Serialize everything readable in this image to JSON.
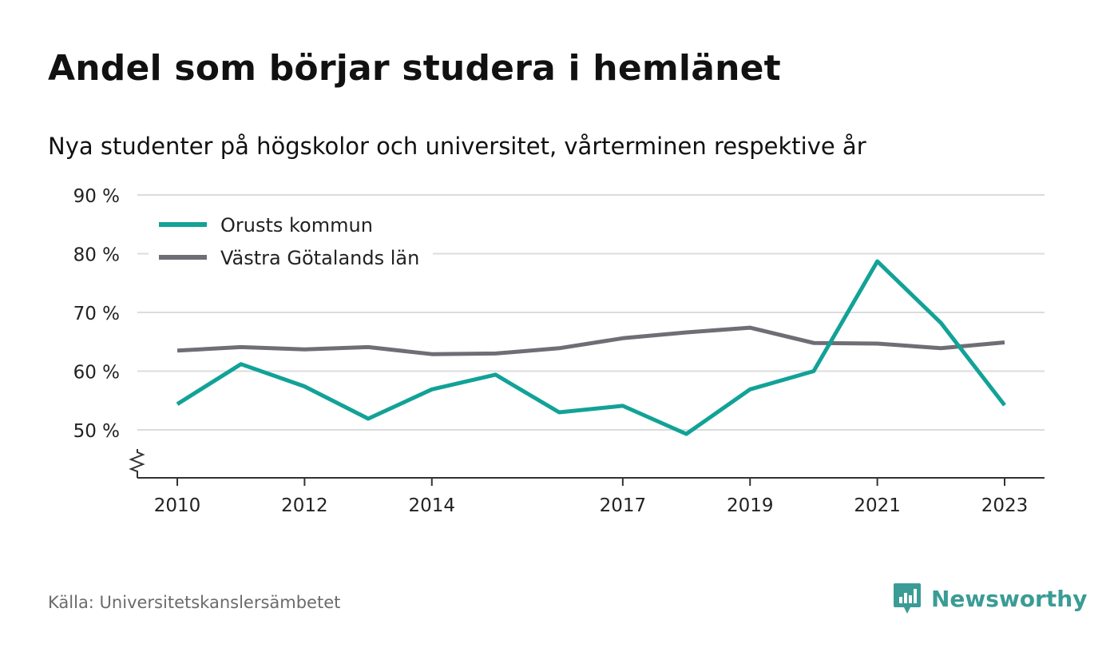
{
  "header": {
    "title": "Andel som börjar studera i hemlänet",
    "subtitle": "Nya studenter på högskolor och universitet, vårterminen respektive år"
  },
  "footer": {
    "source": "Källa: Universitetskanslersämbetet",
    "brand": "Newsworthy"
  },
  "colors": {
    "orust": "#12a297",
    "vastra": "#6f6e76",
    "grid": "#dcdcdc",
    "axis": "#333333",
    "brand": "#3a9c95"
  },
  "chart_data": {
    "type": "line",
    "x": [
      2010,
      2011,
      2012,
      2013,
      2014,
      2015,
      2016,
      2017,
      2018,
      2019,
      2020,
      2021,
      2022,
      2023
    ],
    "x_tick_labels": [
      "2010",
      "2012",
      "2014",
      "2017",
      "2019",
      "2021",
      "2023"
    ],
    "y_tick_labels": [
      "50 %",
      "60 %",
      "70 %",
      "80 %",
      "90 %"
    ],
    "y_ticks": [
      50,
      60,
      70,
      80,
      90
    ],
    "ylim": [
      42,
      90
    ],
    "y_axis_break": true,
    "grid": true,
    "legend_position": "top-left",
    "series": [
      {
        "name": "Orusts kommun",
        "color": "#12a297",
        "values": [
          54.4,
          61.2,
          57.4,
          51.9,
          56.9,
          59.4,
          53.0,
          54.1,
          49.3,
          56.9,
          60.0,
          78.7,
          68.2,
          54.2
        ]
      },
      {
        "name": "Västra Götalands län",
        "color": "#6f6e76",
        "values": [
          63.5,
          64.1,
          63.7,
          64.1,
          62.9,
          63.0,
          63.9,
          65.6,
          66.6,
          67.4,
          64.8,
          64.7,
          63.9,
          64.9
        ]
      }
    ]
  }
}
